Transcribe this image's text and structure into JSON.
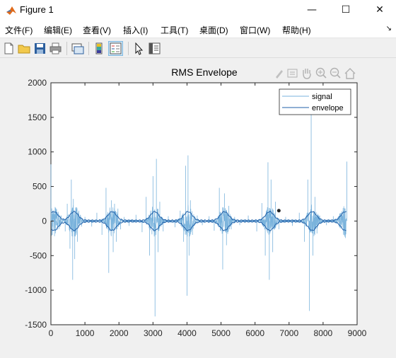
{
  "window": {
    "title": "Figure 1",
    "minimize_glyph": "—",
    "maximize_glyph": "☐",
    "close_glyph": "✕"
  },
  "menu": {
    "items": [
      "文件(F)",
      "编辑(E)",
      "查看(V)",
      "插入(I)",
      "工具(T)",
      "桌面(D)",
      "窗口(W)",
      "帮助(H)"
    ],
    "overflow_glyph": "↘"
  },
  "toolbar": {
    "icons": [
      "new-figure-icon",
      "open-file-icon",
      "save-icon",
      "print-icon",
      "link-plot-icon",
      "insert-colorbar-icon",
      "insert-legend-icon",
      "pointer-icon",
      "property-inspector-icon"
    ]
  },
  "axes_toolbar": {
    "icons": [
      "brush-icon",
      "data-tips-icon",
      "pan-icon",
      "zoom-in-icon",
      "zoom-out-icon",
      "home-icon"
    ]
  },
  "chart_data": {
    "type": "line",
    "title": "RMS Envelope",
    "xlabel": "",
    "ylabel": "",
    "xlim": [
      0,
      9000
    ],
    "ylim": [
      -1500,
      2000
    ],
    "xticks": [
      0,
      1000,
      2000,
      3000,
      4000,
      5000,
      6000,
      7000,
      8000,
      9000
    ],
    "yticks": [
      -1500,
      -1000,
      -500,
      0,
      500,
      1000,
      1500,
      2000
    ],
    "grid": false,
    "legend_position": "top-right",
    "series": [
      {
        "name": "signal",
        "color": "#7ab3dc",
        "description_points": {
          "x": [
            0,
            40,
            60,
            150,
            300,
            420,
            480,
            560,
            600,
            640,
            660,
            700,
            740,
            780,
            820,
            900,
            1000,
            1200,
            1350,
            1500,
            1620,
            1700,
            1780,
            1830,
            1870,
            1920,
            1970,
            2050,
            2150,
            2300,
            2500,
            2680,
            2800,
            2900,
            3000,
            3060,
            3100,
            3150,
            3200,
            3300,
            3450,
            3650,
            3800,
            3900,
            3960,
            4000,
            4030,
            4060,
            4100,
            4160,
            4300,
            4450,
            4650,
            4800,
            4950,
            5050,
            5100,
            5160,
            5230,
            5300,
            5400,
            5550,
            5800,
            6050,
            6200,
            6300,
            6380,
            6420,
            6470,
            6520,
            6600,
            6700,
            6900,
            7100,
            7300,
            7450,
            7550,
            7600,
            7650,
            7700,
            7760,
            7820,
            7900,
            8100,
            8300,
            8500,
            8600,
            8640,
            8700
          ],
          "y": [
            820,
            -200,
            120,
            -60,
            80,
            -150,
            250,
            -400,
            600,
            -850,
            320,
            -550,
            200,
            -300,
            150,
            -80,
            60,
            -80,
            120,
            -200,
            480,
            -750,
            300,
            -450,
            250,
            -300,
            180,
            -120,
            60,
            -70,
            90,
            -160,
            350,
            -500,
            650,
            -1380,
            900,
            -450,
            280,
            -150,
            70,
            -90,
            150,
            -300,
            800,
            -1080,
            950,
            -500,
            300,
            -200,
            80,
            -60,
            70,
            -140,
            480,
            -700,
            400,
            -350,
            220,
            -120,
            60,
            -60,
            80,
            -150,
            260,
            -500,
            850,
            -850,
            600,
            -450,
            280,
            -120,
            60,
            -70,
            120,
            -300,
            600,
            -1300,
            1560,
            -500,
            350,
            -180,
            80,
            -60,
            70,
            -100,
            150,
            -160,
            860
          ]
        }
      },
      {
        "name": "envelope",
        "color": "#1f5fa8"
      }
    ],
    "marker": {
      "x": 6700,
      "y": 150,
      "color": "#222222"
    }
  }
}
